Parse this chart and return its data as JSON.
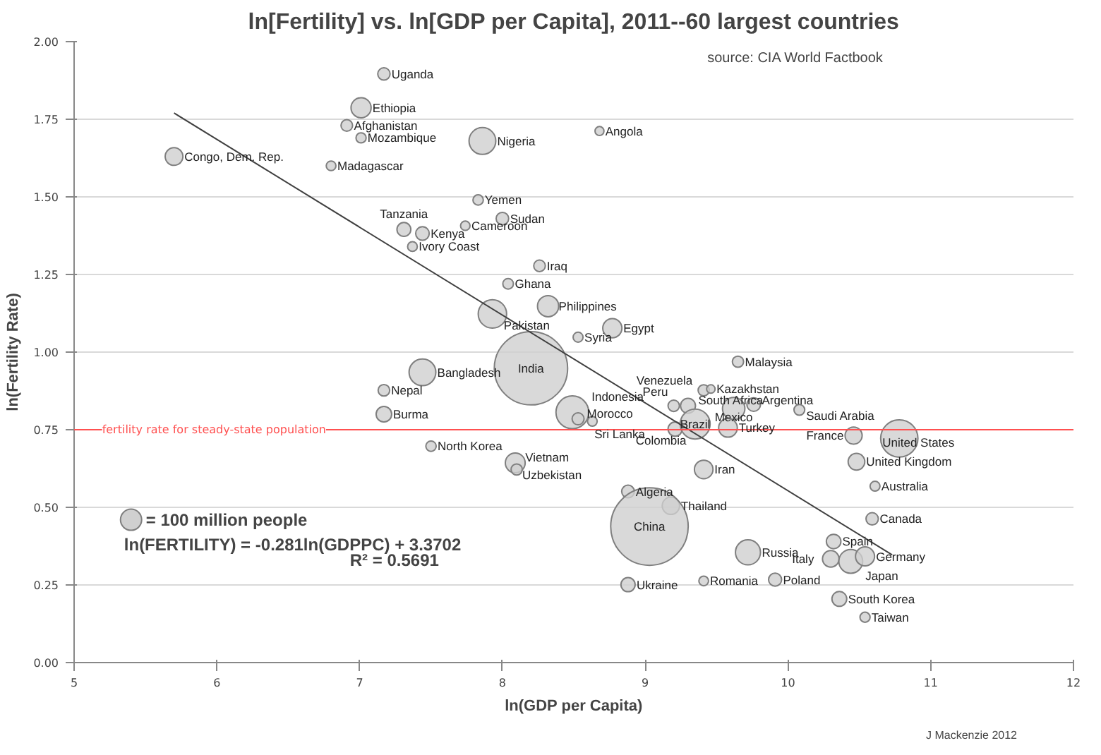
{
  "chart_data": {
    "type": "bubble",
    "title": "ln[Fertility] vs. ln[GDP per Capita], 2011--60 largest countries",
    "subtitle": "source: CIA World Factbook",
    "xlabel": "ln(GDP per Capita)",
    "ylabel": "ln(Fertility Rate)",
    "xlim": [
      5,
      12
    ],
    "xticks": [
      5,
      6,
      7,
      8,
      9,
      10,
      11,
      12
    ],
    "ylim": [
      0,
      2
    ],
    "yticks": [
      {
        "value": 0,
        "label": "0.00"
      },
      {
        "value": 0.25,
        "label": "0.25"
      },
      {
        "value": 0.5,
        "label": "0.50"
      },
      {
        "value": 0.75,
        "label": "0.75"
      },
      {
        "value": 1,
        "label": "1.00"
      },
      {
        "value": 1.25,
        "label": "1.25"
      },
      {
        "value": 1.5,
        "label": "1.50"
      },
      {
        "value": 1.75,
        "label": "1.75"
      },
      {
        "value": 2,
        "label": "2.00"
      }
    ],
    "grid": "y",
    "size_legend": [
      {
        "value": 100,
        "label": "= 100 million people"
      }
    ],
    "ref_lines": [
      {
        "axis": "y",
        "value": 0.75,
        "label": "fertility rate for steady-state population",
        "color": "#ff5050"
      }
    ],
    "annotations": [
      "ln(FERTILITY) = -0.281ln(GDPPC) + 3.3702",
      "R² = 0.5691",
      "J Mackenzie 2012"
    ],
    "series": [
      {
        "name": "Uganda",
        "color": "#d0d0d0",
        "x": [
          7.17
        ],
        "values": [
          1.896
        ],
        "sizes": [
          34
        ]
      },
      {
        "name": "Ethiopia",
        "color": "#d0d0d0",
        "x": [
          7.01
        ],
        "values": [
          1.787
        ],
        "sizes": [
          90
        ]
      },
      {
        "name": "Afghanistan",
        "color": "#d0d0d0",
        "x": [
          6.91
        ],
        "values": [
          1.73
        ],
        "sizes": [
          30
        ]
      },
      {
        "name": "Mozambique",
        "color": "#d0d0d0",
        "x": [
          7.01
        ],
        "values": [
          1.69
        ],
        "sizes": [
          23
        ]
      },
      {
        "name": "Nigeria",
        "color": "#d0d0d0",
        "x": [
          7.86
        ],
        "values": [
          1.68
        ],
        "sizes": [
          160
        ]
      },
      {
        "name": "Congo, Dem. Rep.",
        "color": "#d0d0d0",
        "x": [
          5.7
        ],
        "values": [
          1.63
        ],
        "sizes": [
          70
        ]
      },
      {
        "name": "Madagascar",
        "color": "#d0d0d0",
        "x": [
          6.8
        ],
        "values": [
          1.6
        ],
        "sizes": [
          21
        ]
      },
      {
        "name": "Angola",
        "color": "#d0d0d0",
        "x": [
          8.68
        ],
        "values": [
          1.712
        ],
        "sizes": [
          18
        ]
      },
      {
        "name": "Yemen",
        "color": "#d0d0d0",
        "x": [
          7.83
        ],
        "values": [
          1.49
        ],
        "sizes": [
          24
        ]
      },
      {
        "name": "Sudan",
        "color": "#d0d0d0",
        "x": [
          8.0
        ],
        "values": [
          1.43
        ],
        "sizes": [
          35
        ]
      },
      {
        "name": "Tanzania",
        "color": "#d0d0d0",
        "x": [
          7.31
        ],
        "values": [
          1.395
        ],
        "sizes": [
          43
        ]
      },
      {
        "name": "Kenya",
        "color": "#d0d0d0",
        "x": [
          7.44
        ],
        "values": [
          1.382
        ],
        "sizes": [
          41
        ]
      },
      {
        "name": "Cameroon",
        "color": "#d0d0d0",
        "x": [
          7.74
        ],
        "values": [
          1.407
        ],
        "sizes": [
          20
        ]
      },
      {
        "name": "Ivory Coast",
        "color": "#d0d0d0",
        "x": [
          7.37
        ],
        "values": [
          1.34
        ],
        "sizes": [
          21
        ]
      },
      {
        "name": "Iraq",
        "color": "#d0d0d0",
        "x": [
          8.26
        ],
        "values": [
          1.278
        ],
        "sizes": [
          30
        ]
      },
      {
        "name": "Ghana",
        "color": "#d0d0d0",
        "x": [
          8.04
        ],
        "values": [
          1.22
        ],
        "sizes": [
          25
        ]
      },
      {
        "name": "Philippines",
        "color": "#d0d0d0",
        "x": [
          8.32
        ],
        "values": [
          1.148
        ],
        "sizes": [
          100
        ]
      },
      {
        "name": "Pakistan",
        "color": "#d0d0d0",
        "x": [
          7.93
        ],
        "values": [
          1.123
        ],
        "sizes": [
          180
        ]
      },
      {
        "name": "Egypt",
        "color": "#d0d0d0",
        "x": [
          8.77
        ],
        "values": [
          1.077
        ],
        "sizes": [
          82
        ]
      },
      {
        "name": "Syria",
        "color": "#d0d0d0",
        "x": [
          8.53
        ],
        "values": [
          1.048
        ],
        "sizes": [
          22
        ]
      },
      {
        "name": "India",
        "color": "#d0d0d0",
        "x": [
          8.2
        ],
        "values": [
          0.948
        ],
        "sizes": [
          1200
        ]
      },
      {
        "name": "Bangladesh",
        "color": "#d0d0d0",
        "x": [
          7.44
        ],
        "values": [
          0.935
        ],
        "sizes": [
          160
        ]
      },
      {
        "name": "Nepal",
        "color": "#d0d0d0",
        "x": [
          7.17
        ],
        "values": [
          0.877
        ],
        "sizes": [
          30
        ]
      },
      {
        "name": "Burma",
        "color": "#d0d0d0",
        "x": [
          7.17
        ],
        "values": [
          0.8
        ],
        "sizes": [
          54
        ]
      },
      {
        "name": "Malaysia",
        "color": "#d0d0d0",
        "x": [
          9.65
        ],
        "values": [
          0.969
        ],
        "sizes": [
          28
        ]
      },
      {
        "name": "Venezuela",
        "color": "#d0d0d0",
        "x": [
          9.41
        ],
        "values": [
          0.877
        ],
        "sizes": [
          28
        ]
      },
      {
        "name": "Kazakhstan",
        "color": "#d0d0d0",
        "x": [
          9.46
        ],
        "values": [
          0.881
        ],
        "sizes": [
          16
        ]
      },
      {
        "name": "Peru",
        "color": "#d0d0d0",
        "x": [
          9.2
        ],
        "values": [
          0.827
        ],
        "sizes": [
          29
        ]
      },
      {
        "name": "South Africa",
        "color": "#d0d0d0",
        "x": [
          9.3
        ],
        "values": [
          0.827
        ],
        "sizes": [
          50
        ]
      },
      {
        "name": "Argentina",
        "color": "#d0d0d0",
        "x": [
          9.76
        ],
        "values": [
          0.831
        ],
        "sizes": [
          41
        ]
      },
      {
        "name": "Mexico",
        "color": "#d0d0d0",
        "x": [
          9.62
        ],
        "values": [
          0.818
        ],
        "sizes": [
          112
        ]
      },
      {
        "name": "Saudi Arabia",
        "color": "#d0d0d0",
        "x": [
          10.08
        ],
        "values": [
          0.814
        ],
        "sizes": [
          26
        ]
      },
      {
        "name": "Indonesia",
        "color": "#d0d0d0",
        "x": [
          8.49
        ],
        "values": [
          0.806
        ],
        "sizes": [
          240
        ]
      },
      {
        "name": "Morocco",
        "color": "#d0d0d0",
        "x": [
          8.53
        ],
        "values": [
          0.785
        ],
        "sizes": [
          32
        ]
      },
      {
        "name": "Sri Lanka",
        "color": "#d0d0d0",
        "x": [
          8.63
        ],
        "values": [
          0.777
        ],
        "sizes": [
          21
        ]
      },
      {
        "name": "Colombia",
        "color": "#d0d0d0",
        "x": [
          9.21
        ],
        "values": [
          0.752
        ],
        "sizes": [
          45
        ]
      },
      {
        "name": "Brazil",
        "color": "#d0d0d0",
        "x": [
          9.35
        ],
        "values": [
          0.768
        ],
        "sizes": [
          200
        ]
      },
      {
        "name": "Turkey",
        "color": "#d0d0d0",
        "x": [
          9.58
        ],
        "values": [
          0.756
        ],
        "sizes": [
          78
        ]
      },
      {
        "name": "France",
        "color": "#d0d0d0",
        "x": [
          10.46
        ],
        "values": [
          0.731
        ],
        "sizes": [
          65
        ]
      },
      {
        "name": "United States",
        "color": "#d0d0d0",
        "x": [
          10.78
        ],
        "values": [
          0.722
        ],
        "sizes": [
          310
        ]
      },
      {
        "name": "North Korea",
        "color": "#d0d0d0",
        "x": [
          7.5
        ],
        "values": [
          0.697
        ],
        "sizes": [
          24
        ]
      },
      {
        "name": "Vietnam",
        "color": "#d0d0d0",
        "x": [
          8.09
        ],
        "values": [
          0.643
        ],
        "sizes": [
          88
        ]
      },
      {
        "name": "Uzbekistan",
        "color": "#d0d0d0",
        "x": [
          8.1
        ],
        "values": [
          0.622
        ],
        "sizes": [
          28
        ]
      },
      {
        "name": "United Kingdom",
        "color": "#d0d0d0",
        "x": [
          10.48
        ],
        "values": [
          0.647
        ],
        "sizes": [
          62
        ]
      },
      {
        "name": "Iran",
        "color": "#d0d0d0",
        "x": [
          9.41
        ],
        "values": [
          0.622
        ],
        "sizes": [
          77
        ]
      },
      {
        "name": "Australia",
        "color": "#d0d0d0",
        "x": [
          10.61
        ],
        "values": [
          0.568
        ],
        "sizes": [
          22
        ]
      },
      {
        "name": "Algeria",
        "color": "#d0d0d0",
        "x": [
          8.88
        ],
        "values": [
          0.551
        ],
        "sizes": [
          36
        ]
      },
      {
        "name": "Thailand",
        "color": "#d0d0d0",
        "x": [
          9.18
        ],
        "values": [
          0.505
        ],
        "sizes": [
          67
        ]
      },
      {
        "name": "China",
        "color": "#d0d0d0",
        "x": [
          9.03
        ],
        "values": [
          0.438
        ],
        "sizes": [
          1340
        ]
      },
      {
        "name": "Canada",
        "color": "#d0d0d0",
        "x": [
          10.59
        ],
        "values": [
          0.463
        ],
        "sizes": [
          34
        ]
      },
      {
        "name": "Spain",
        "color": "#d0d0d0",
        "x": [
          10.32
        ],
        "values": [
          0.39
        ],
        "sizes": [
          47
        ]
      },
      {
        "name": "Russia",
        "color": "#d0d0d0",
        "x": [
          9.72
        ],
        "values": [
          0.355
        ],
        "sizes": [
          140
        ]
      },
      {
        "name": "Italy",
        "color": "#d0d0d0",
        "x": [
          10.3
        ],
        "values": [
          0.334
        ],
        "sizes": [
          61
        ]
      },
      {
        "name": "Japan",
        "color": "#d0d0d0",
        "x": [
          10.44
        ],
        "values": [
          0.326
        ],
        "sizes": [
          127
        ]
      },
      {
        "name": "Germany",
        "color": "#d0d0d0",
        "x": [
          10.54
        ],
        "values": [
          0.342
        ],
        "sizes": [
          81
        ]
      },
      {
        "name": "Ukraine",
        "color": "#d0d0d0",
        "x": [
          8.88
        ],
        "values": [
          0.251
        ],
        "sizes": [
          45
        ]
      },
      {
        "name": "Romania",
        "color": "#d0d0d0",
        "x": [
          9.41
        ],
        "values": [
          0.263
        ],
        "sizes": [
          21
        ]
      },
      {
        "name": "Poland",
        "color": "#d0d0d0",
        "x": [
          9.91
        ],
        "values": [
          0.267
        ],
        "sizes": [
          38
        ]
      },
      {
        "name": "South Korea",
        "color": "#d0d0d0",
        "x": [
          10.36
        ],
        "values": [
          0.205
        ],
        "sizes": [
          49
        ]
      },
      {
        "name": "Taiwan",
        "color": "#d0d0d0",
        "x": [
          10.54
        ],
        "values": [
          0.146
        ],
        "sizes": [
          23
        ]
      },
      {
        "type": "line",
        "color": "#404040",
        "x": [
          5.7,
          10.73
        ],
        "values": [
          1.77,
          0.347
        ]
      }
    ]
  }
}
